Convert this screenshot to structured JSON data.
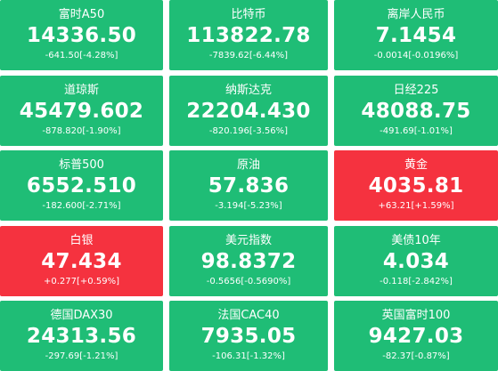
{
  "tiles": [
    {
      "name": "富时A50",
      "price": "14336.50",
      "change": "-641.50[-4.28%]",
      "color": "#1fbd76"
    },
    {
      "name": "比特币",
      "price": "113822.78",
      "change": "-7839.62[-6.44%]",
      "color": "#1fbd76"
    },
    {
      "name": "离岸人民币",
      "price": "7.1454",
      "change": "-0.0014[-0.0196%]",
      "color": "#1fbd76"
    },
    {
      "name": "道琼斯",
      "price": "45479.602",
      "change": "-878.820[-1.90%]",
      "color": "#1fbd76"
    },
    {
      "name": "纳斯达克",
      "price": "22204.430",
      "change": "-820.196[-3.56%]",
      "color": "#1fbd76"
    },
    {
      "name": "日经225",
      "price": "48088.75",
      "change": "-491.69[-1.01%]",
      "color": "#1fbd76"
    },
    {
      "name": "标普500",
      "price": "6552.510",
      "change": "-182.600[-2.71%]",
      "color": "#1fbd76"
    },
    {
      "name": "原油",
      "price": "57.836",
      "change": "-3.194[-5.23%]",
      "color": "#1fbd76"
    },
    {
      "name": "黄金",
      "price": "4035.81",
      "change": "+63.21[+1.59%]",
      "color": "#f5323f"
    },
    {
      "name": "白银",
      "price": "47.434",
      "change": "+0.277[+0.59%]",
      "color": "#f5323f"
    },
    {
      "name": "美元指数",
      "price": "98.8372",
      "change": "-0.5656[-0.5690%]",
      "color": "#1fbd76"
    },
    {
      "name": "美债10年",
      "price": "4.034",
      "change": "-0.118[-2.842%]",
      "color": "#1fbd76"
    },
    {
      "name": "德国DAX30",
      "price": "24313.56",
      "change": "-297.69[-1.21%]",
      "color": "#1fbd76"
    },
    {
      "name": "法国CAC40",
      "price": "7935.05",
      "change": "-106.31[-1.32%]",
      "color": "#1fbd76"
    },
    {
      "name": "英国富时100",
      "price": "9427.03",
      "change": "-82.37[-0.87%]",
      "color": "#1fbd76"
    }
  ]
}
